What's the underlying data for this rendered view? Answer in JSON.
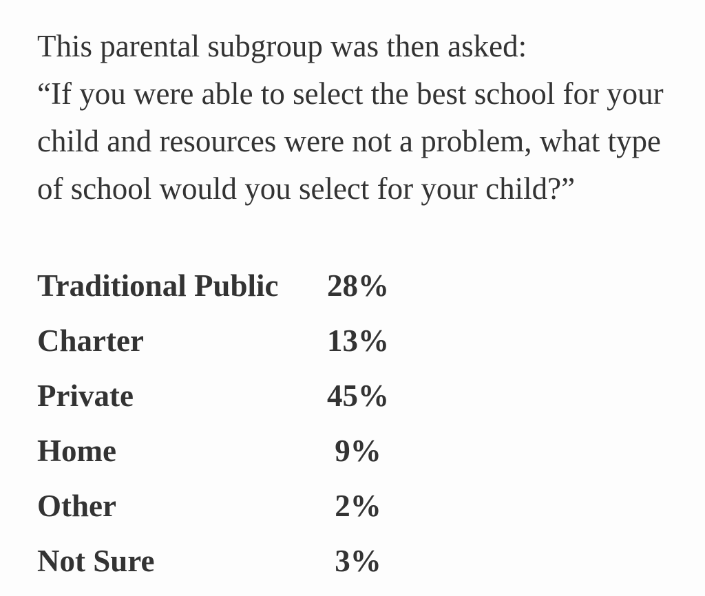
{
  "page": {
    "background": "#fdfdfd",
    "text_color": "#333333"
  },
  "question": {
    "lines": [
      "This parental subgroup was then asked:",
      "“If you were able to select the best school for your",
      "child and resources were not a problem, what type",
      "of school would you select for your child?”"
    ]
  },
  "results": {
    "rows": [
      {
        "label": "Traditional Public",
        "value": "28%"
      },
      {
        "label": "Charter",
        "value": "13%"
      },
      {
        "label": "Private",
        "value": "45%"
      },
      {
        "label": "Home",
        "value": "9%"
      },
      {
        "label": "Other",
        "value": "2%"
      },
      {
        "label": "Not Sure",
        "value": "3%"
      }
    ]
  }
}
